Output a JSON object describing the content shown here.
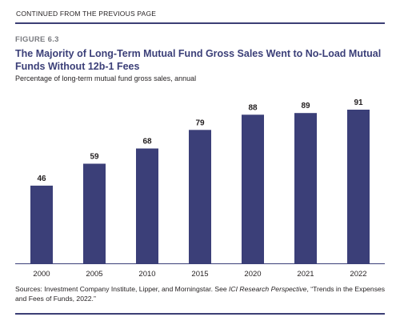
{
  "header": {
    "continued": "CONTINUED FROM THE PREVIOUS PAGE"
  },
  "figure": {
    "number": "FIGURE 6.3",
    "title": "The Majority of Long-Term Mutual Fund Gross Sales Went to No-Load Mutual Funds Without 12b-1 Fees",
    "subtitle": "Percentage of long-term mutual fund gross sales, annual"
  },
  "sources": {
    "prefix": "Sources: Investment Company Institute, Lipper, and Morningstar. See ",
    "italic": "ICI Research Perspective",
    "suffix": ", “Trends in the Expenses and Fees of Funds, 2022.”"
  },
  "colors": {
    "bar": "#3b3f78",
    "rule": "#3c3f75",
    "axis": "#3b3f78"
  },
  "chart_data": {
    "type": "bar",
    "title": "",
    "xlabel": "",
    "ylabel": "",
    "categories": [
      "2000",
      "2005",
      "2010",
      "2015",
      "2020",
      "2021",
      "2022"
    ],
    "values": [
      46,
      59,
      68,
      79,
      88,
      89,
      91
    ],
    "ylim": [
      0,
      100
    ],
    "grid": false,
    "legend": "none",
    "data_labels": true
  }
}
